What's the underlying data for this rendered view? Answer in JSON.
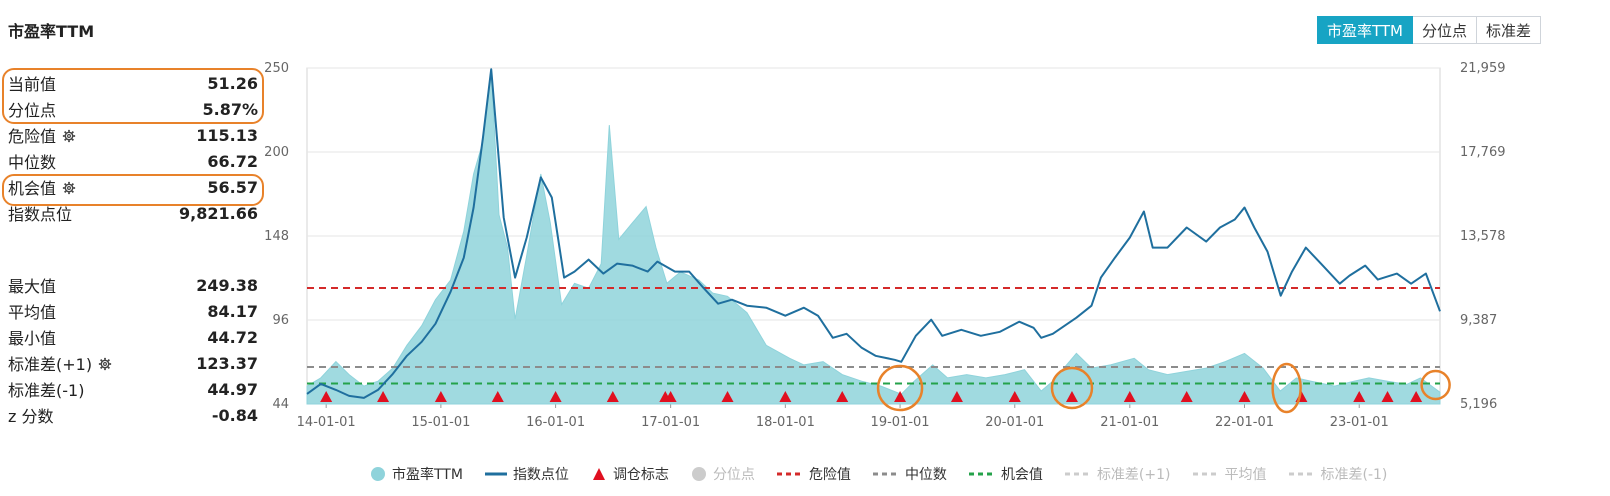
{
  "title": "市盈率TTM",
  "tabs": [
    {
      "label": "市盈率TTM",
      "active": true
    },
    {
      "label": "分位点",
      "active": false
    },
    {
      "label": "标准差",
      "active": false
    }
  ],
  "stats_top": [
    {
      "label": "当前值",
      "value": "51.26",
      "gear": false
    },
    {
      "label": "分位点",
      "value": "5.87%",
      "gear": false
    },
    {
      "label": "危险值",
      "value": "115.13",
      "gear": true
    },
    {
      "label": "中位数",
      "value": "66.72",
      "gear": false
    },
    {
      "label": "机会值",
      "value": "56.57",
      "gear": true
    },
    {
      "label": "指数点位",
      "value": "9,821.66",
      "gear": false
    }
  ],
  "stats_bottom": [
    {
      "label": "最大值",
      "value": "249.38",
      "gear": false
    },
    {
      "label": "平均值",
      "value": "84.17",
      "gear": false
    },
    {
      "label": "最小值",
      "value": "44.72",
      "gear": false
    },
    {
      "label": "标准差(+1)",
      "value": "123.37",
      "gear": true
    },
    {
      "label": "标准差(-1)",
      "value": "44.97",
      "gear": false
    },
    {
      "label": "z 分数",
      "value": "-0.84",
      "gear": false
    }
  ],
  "colors": {
    "pe_fill": "#8fd3db",
    "index_line": "#1f6f9e",
    "danger": "#d42a2a",
    "median": "#8c8c8c",
    "opportunity": "#24a24a",
    "marker": "#e01020",
    "accent": "#17a4c4",
    "highlight": "#e8822a"
  },
  "chart_data": {
    "type": "area",
    "x_tick_labels": [
      "14-01-01",
      "15-01-01",
      "16-01-01",
      "17-01-01",
      "18-01-01",
      "19-01-01",
      "20-01-01",
      "21-01-01",
      "22-01-01",
      "23-01-01"
    ],
    "x_range": [
      "2013-11-01",
      "2023-09-15"
    ],
    "y_left_ticks": [
      "250",
      "200",
      "148",
      "96",
      "44"
    ],
    "y_left_range": [
      44,
      250
    ],
    "y_right_ticks": [
      "21,959",
      "17,769",
      "13,578",
      "9,387",
      "5,196"
    ],
    "y_right_range": [
      5196,
      21959
    ],
    "reference_lines": {
      "danger": 115.13,
      "median": 66.72,
      "opportunity": 56.57
    },
    "series": [
      {
        "name": "市盈率TTM",
        "axis": "left",
        "points": [
          [
            "2013-11-01",
            55
          ],
          [
            "2013-12-15",
            60
          ],
          [
            "2014-02-01",
            70
          ],
          [
            "2014-03-15",
            62
          ],
          [
            "2014-05-01",
            55
          ],
          [
            "2014-06-15",
            58
          ],
          [
            "2014-08-01",
            66
          ],
          [
            "2014-09-15",
            80
          ],
          [
            "2014-11-01",
            92
          ],
          [
            "2014-12-15",
            108
          ],
          [
            "2015-02-01",
            120
          ],
          [
            "2015-03-15",
            150
          ],
          [
            "2015-04-15",
            185
          ],
          [
            "2015-05-15",
            205
          ],
          [
            "2015-06-10",
            249
          ],
          [
            "2015-07-05",
            160
          ],
          [
            "2015-08-01",
            140
          ],
          [
            "2015-08-25",
            96
          ],
          [
            "2015-10-01",
            135
          ],
          [
            "2015-11-15",
            185
          ],
          [
            "2015-12-15",
            155
          ],
          [
            "2016-01-20",
            105
          ],
          [
            "2016-03-01",
            118
          ],
          [
            "2016-04-15",
            115
          ],
          [
            "2016-05-25",
            130
          ],
          [
            "2016-06-20",
            215
          ],
          [
            "2016-07-20",
            145
          ],
          [
            "2016-09-01",
            155
          ],
          [
            "2016-10-15",
            165
          ],
          [
            "2016-11-15",
            140
          ],
          [
            "2016-12-20",
            118
          ],
          [
            "2017-02-01",
            125
          ],
          [
            "2017-04-01",
            120
          ],
          [
            "2017-05-15",
            112
          ],
          [
            "2017-07-01",
            110
          ],
          [
            "2017-09-01",
            100
          ],
          [
            "2017-11-01",
            80
          ],
          [
            "2018-01-15",
            72
          ],
          [
            "2018-03-01",
            68
          ],
          [
            "2018-05-01",
            70
          ],
          [
            "2018-07-01",
            62
          ],
          [
            "2018-09-01",
            58
          ],
          [
            "2018-11-01",
            55
          ],
          [
            "2019-01-05",
            50
          ],
          [
            "2019-02-15",
            58
          ],
          [
            "2019-04-15",
            68
          ],
          [
            "2019-06-01",
            60
          ],
          [
            "2019-08-01",
            62
          ],
          [
            "2019-10-01",
            60
          ],
          [
            "2019-12-01",
            62
          ],
          [
            "2020-02-01",
            65
          ],
          [
            "2020-03-25",
            52
          ],
          [
            "2020-05-01",
            58
          ],
          [
            "2020-07-15",
            75
          ],
          [
            "2020-09-01",
            66
          ],
          [
            "2020-11-01",
            68
          ],
          [
            "2021-01-15",
            72
          ],
          [
            "2021-03-01",
            65
          ],
          [
            "2021-05-01",
            62
          ],
          [
            "2021-07-01",
            64
          ],
          [
            "2021-09-01",
            66
          ],
          [
            "2021-11-01",
            70
          ],
          [
            "2022-01-01",
            75
          ],
          [
            "2022-03-01",
            66
          ],
          [
            "2022-04-25",
            52
          ],
          [
            "2022-06-15",
            60
          ],
          [
            "2022-08-01",
            58
          ],
          [
            "2022-10-15",
            55
          ],
          [
            "2022-12-15",
            58
          ],
          [
            "2023-02-01",
            60
          ],
          [
            "2023-04-01",
            58
          ],
          [
            "2023-06-01",
            56
          ],
          [
            "2023-07-15",
            60
          ],
          [
            "2023-09-15",
            51.26
          ]
        ]
      },
      {
        "name": "指数点位",
        "axis": "right",
        "points": [
          [
            "2013-11-01",
            5700
          ],
          [
            "2013-12-15",
            6200
          ],
          [
            "2014-02-01",
            5900
          ],
          [
            "2014-03-15",
            5600
          ],
          [
            "2014-05-01",
            5500
          ],
          [
            "2014-06-15",
            5900
          ],
          [
            "2014-08-01",
            6700
          ],
          [
            "2014-09-15",
            7600
          ],
          [
            "2014-11-01",
            8300
          ],
          [
            "2014-12-15",
            9200
          ],
          [
            "2015-02-01",
            10800
          ],
          [
            "2015-03-15",
            12500
          ],
          [
            "2015-04-15",
            15000
          ],
          [
            "2015-05-15",
            18500
          ],
          [
            "2015-06-10",
            21900
          ],
          [
            "2015-07-01",
            18000
          ],
          [
            "2015-07-20",
            14500
          ],
          [
            "2015-08-25",
            11500
          ],
          [
            "2015-10-01",
            13500
          ],
          [
            "2015-11-15",
            16500
          ],
          [
            "2015-12-20",
            15500
          ],
          [
            "2016-01-28",
            11500
          ],
          [
            "2016-03-01",
            11800
          ],
          [
            "2016-04-15",
            12400
          ],
          [
            "2016-06-01",
            11700
          ],
          [
            "2016-07-15",
            12200
          ],
          [
            "2016-09-01",
            12100
          ],
          [
            "2016-10-20",
            11800
          ],
          [
            "2016-11-20",
            12300
          ],
          [
            "2017-01-15",
            11800
          ],
          [
            "2017-03-01",
            11800
          ],
          [
            "2017-04-15",
            11000
          ],
          [
            "2017-06-01",
            10200
          ],
          [
            "2017-07-15",
            10400
          ],
          [
            "2017-09-01",
            10100
          ],
          [
            "2017-11-01",
            10000
          ],
          [
            "2018-01-01",
            9600
          ],
          [
            "2018-03-01",
            10000
          ],
          [
            "2018-04-15",
            9600
          ],
          [
            "2018-06-01",
            8500
          ],
          [
            "2018-07-15",
            8700
          ],
          [
            "2018-09-01",
            8000
          ],
          [
            "2018-10-15",
            7600
          ],
          [
            "2018-12-15",
            7400
          ],
          [
            "2019-01-05",
            7300
          ],
          [
            "2019-02-20",
            8600
          ],
          [
            "2019-04-10",
            9400
          ],
          [
            "2019-05-15",
            8600
          ],
          [
            "2019-07-15",
            8900
          ],
          [
            "2019-09-15",
            8600
          ],
          [
            "2019-11-15",
            8800
          ],
          [
            "2020-01-15",
            9300
          ],
          [
            "2020-03-01",
            9000
          ],
          [
            "2020-03-25",
            8500
          ],
          [
            "2020-05-01",
            8700
          ],
          [
            "2020-07-15",
            9500
          ],
          [
            "2020-09-01",
            10100
          ],
          [
            "2020-10-01",
            11500
          ],
          [
            "2020-11-15",
            12500
          ],
          [
            "2021-01-01",
            13500
          ],
          [
            "2021-02-15",
            14800
          ],
          [
            "2021-03-15",
            13000
          ],
          [
            "2021-05-01",
            13000
          ],
          [
            "2021-07-01",
            14000
          ],
          [
            "2021-09-01",
            13300
          ],
          [
            "2021-10-15",
            14000
          ],
          [
            "2021-12-01",
            14400
          ],
          [
            "2022-01-01",
            15000
          ],
          [
            "2022-02-01",
            14000
          ],
          [
            "2022-03-15",
            12800
          ],
          [
            "2022-04-26",
            10600
          ],
          [
            "2022-06-01",
            11800
          ],
          [
            "2022-07-15",
            13000
          ],
          [
            "2022-09-01",
            12200
          ],
          [
            "2022-10-31",
            11200
          ],
          [
            "2022-12-01",
            11600
          ],
          [
            "2023-01-20",
            12100
          ],
          [
            "2023-03-01",
            11400
          ],
          [
            "2023-05-01",
            11700
          ],
          [
            "2023-06-15",
            11200
          ],
          [
            "2023-08-01",
            11700
          ],
          [
            "2023-09-15",
            9821.66
          ]
        ]
      }
    ],
    "markers": {
      "name": "调仓标志",
      "dates": [
        "2014-01-01",
        "2014-07-01",
        "2015-01-01",
        "2015-07-01",
        "2016-01-01",
        "2016-07-01",
        "2016-12-15",
        "2017-01-01",
        "2017-07-01",
        "2018-01-01",
        "2018-07-01",
        "2019-01-01",
        "2019-07-01",
        "2020-01-01",
        "2020-07-01",
        "2021-01-01",
        "2021-07-01",
        "2022-01-01",
        "2022-07-01",
        "2023-01-01",
        "2023-04-01",
        "2023-07-01"
      ]
    },
    "legend": [
      "市盈率TTM",
      "指数点位",
      "调仓标志",
      "分位点",
      "危险值",
      "中位数",
      "机会值",
      "标准差(+1)",
      "平均值",
      "标准差(-1)"
    ],
    "legend_off": [
      false,
      false,
      false,
      true,
      false,
      false,
      false,
      true,
      true,
      true
    ]
  }
}
